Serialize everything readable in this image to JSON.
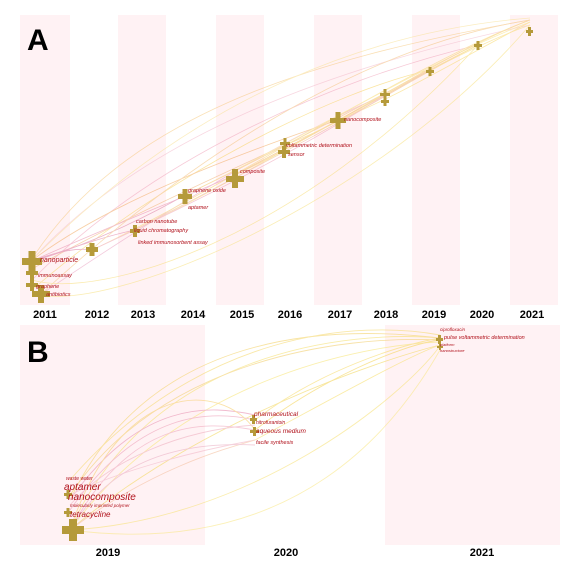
{
  "panel_a": {
    "letter": "A",
    "years": [
      "2011",
      "2012",
      "2013",
      "2014",
      "2015",
      "2016",
      "2017",
      "2018",
      "2019",
      "2020",
      "2021"
    ],
    "keywords": [
      "nanoparticle",
      "immunoassay",
      "graphene",
      "antibiotics",
      "carbon nanotube",
      "liquid chromatography",
      "linked immunosorbent assay",
      "graphene oxide",
      "aptamer",
      "composite",
      "voltammetric determination",
      "sensor",
      "nanocomposite"
    ]
  },
  "panel_b": {
    "letter": "B",
    "years": [
      "2019",
      "2020",
      "2021"
    ],
    "keywords": [
      "waste water",
      "aptamer",
      "nanocomposite",
      "molecularly imprinted polymer",
      "tetracycline",
      "pharmaceutical",
      "nitrofurantoin",
      "aqueous medium",
      "facile synthesis",
      "ciprofloxacin",
      "pulse voltammetric determination",
      "platform",
      "nanostructure"
    ]
  }
}
